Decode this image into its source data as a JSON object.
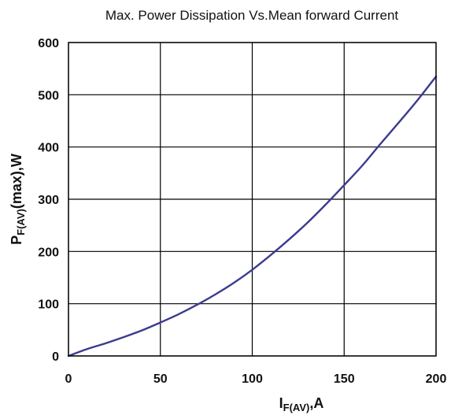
{
  "chart_data": {
    "type": "line",
    "title": "Max. Power Dissipation Vs.Mean forward Current",
    "xlabel": {
      "main": "I",
      "sub": "F(AV)",
      "suffix": ",A"
    },
    "ylabel": {
      "main": "P",
      "sub": "F(AV)",
      "suffix": "(max),W"
    },
    "xlim": [
      0,
      200
    ],
    "ylim": [
      0,
      600
    ],
    "x_ticks": [
      0,
      50,
      100,
      150,
      200
    ],
    "x_tick_labels": [
      "0",
      "50",
      "100",
      "150",
      "200"
    ],
    "y_ticks": [
      0,
      100,
      200,
      300,
      400,
      500,
      600
    ],
    "y_tick_labels": [
      "0",
      "100",
      "200",
      "300",
      "400",
      "500",
      "600"
    ],
    "grid": true,
    "series": [
      {
        "color": "#3b3b8f",
        "x": [
          0,
          10,
          20,
          30,
          40,
          50,
          60,
          70,
          80,
          90,
          100,
          110,
          120,
          130,
          140,
          150,
          160,
          170,
          180,
          190,
          200
        ],
        "y": [
          0,
          13,
          24,
          36,
          49,
          64,
          80,
          98,
          118,
          140,
          165,
          193,
          223,
          255,
          290,
          327,
          365,
          407,
          448,
          490,
          535
        ]
      }
    ]
  }
}
